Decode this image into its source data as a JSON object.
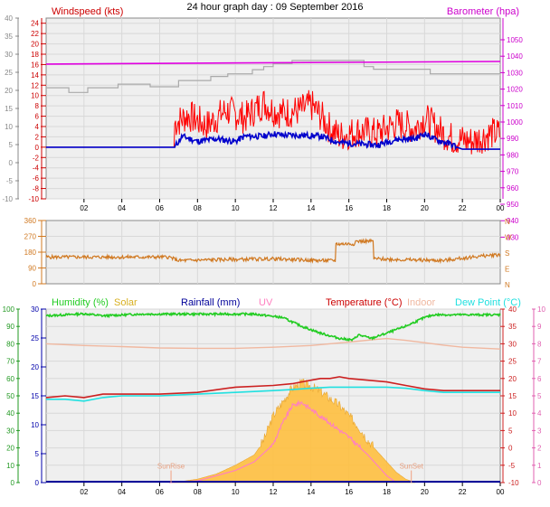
{
  "title": "24 hour graph day : 09 September 2016",
  "colors": {
    "wind": "#ff0000",
    "windAvg": "#0000cc",
    "baro": "#e000e0",
    "baroGrey": "#aaaaaa",
    "dir": "#d07820",
    "humidity": "#22cc22",
    "solar": "#ffc040",
    "rain": "#000099",
    "uv": "#ff80c0",
    "temp": "#cc2020",
    "indoor": "#f0b8a0",
    "dew": "#20e0e0",
    "grid": "#d8d8d8",
    "plotBg": "#efefef"
  },
  "chart_data": [
    {
      "type": "line",
      "legend": {
        "left": "Windspeed (kts)",
        "right": "Barometer (hpa)"
      },
      "outer_left_ticks": [
        "40",
        "35",
        "30",
        "25",
        "20",
        "15",
        "10",
        "5",
        "0",
        "-5",
        "-10"
      ],
      "left_ticks": [
        "24",
        "22",
        "20",
        "18",
        "16",
        "14",
        "12",
        "10",
        "8",
        "6",
        "4",
        "2",
        "0",
        "-2",
        "-4",
        "-6",
        "-8",
        "-10"
      ],
      "right_ticks": [
        "1050",
        "1040",
        "1030",
        "1020",
        "1010",
        "1000",
        "990",
        "980",
        "970",
        "960",
        "950",
        "940",
        "930"
      ],
      "x_ticks": [
        "02",
        "04",
        "06",
        "08",
        "10",
        "12",
        "14",
        "16",
        "18",
        "20",
        "22",
        "00"
      ],
      "ylim": [
        -10,
        25
      ],
      "series": [
        {
          "key": "barometer",
          "x": [
            0,
            24
          ],
          "y": [
            16.1,
            16.6
          ]
        },
        {
          "key": "baro_grey",
          "x": [
            0,
            1.2,
            1.2,
            2.2,
            2.2,
            3.8,
            3.8,
            5.5,
            5.5,
            7.0,
            7.0,
            8.7,
            8.7,
            9.6,
            9.6,
            10.9,
            10.9,
            11.5,
            11.5,
            12.0,
            12.0,
            13.0,
            13.0,
            16.8,
            16.8,
            17.3,
            17.3,
            20.3,
            20.3,
            24
          ],
          "y": [
            11.5,
            11.5,
            10.6,
            10.6,
            11.5,
            11.5,
            12.2,
            12.2,
            11.7,
            11.7,
            12.9,
            12.9,
            13.7,
            13.7,
            14.2,
            14.2,
            15,
            15,
            15.6,
            15.6,
            16.2,
            16.2,
            16.8,
            16.8,
            15.6,
            15.6,
            15.1,
            15.1,
            14.2,
            14.2
          ]
        },
        {
          "key": "gust",
          "x": [
            0,
            6.8,
            6.8,
            7.5,
            8.5,
            9.5,
            10.5,
            11.5,
            12.0,
            12.5,
            13.5,
            14.0,
            14.5,
            15.0,
            15.5,
            16.5,
            17.5,
            18.5,
            19.5,
            20.0,
            20.5,
            21.0,
            21.5,
            22.5,
            23.5,
            24
          ],
          "y": [
            0,
            0,
            4,
            5.5,
            3.5,
            6.5,
            5,
            8,
            6.5,
            6,
            6.5,
            7.5,
            5.5,
            3,
            1.5,
            2.5,
            2,
            4,
            3,
            5,
            3.5,
            2,
            1,
            0.5,
            2,
            2
          ]
        },
        {
          "key": "avg",
          "x": [
            0,
            6.8,
            7.2,
            8,
            9,
            10,
            10.5,
            11.5,
            12,
            12.5,
            13.5,
            14.5,
            15.5,
            16.5,
            17.5,
            18.5,
            19.5,
            20,
            20.5,
            21.5,
            22,
            24
          ],
          "y": [
            0,
            0,
            2,
            1,
            1.5,
            1,
            2,
            2,
            2.5,
            2.2,
            2.2,
            2,
            0.8,
            0.5,
            0.3,
            1.4,
            1.5,
            2.5,
            1.5,
            0.3,
            -0.4,
            -0.4
          ]
        }
      ]
    },
    {
      "type": "line",
      "right_labels": [
        "N",
        "W",
        "S",
        "E",
        "N"
      ],
      "left_ticks": [
        "360",
        "270",
        "180",
        "90",
        "0"
      ],
      "ylim": [
        0,
        360
      ],
      "series": [
        {
          "key": "direction",
          "x": [
            0,
            6.5,
            7,
            9,
            12,
            14.5,
            15.3,
            15.3,
            16.3,
            16.3,
            17.3,
            17.3,
            19,
            21,
            22.5,
            24
          ],
          "y": [
            150,
            150,
            130,
            135,
            140,
            130,
            130,
            225,
            225,
            240,
            240,
            140,
            135,
            130,
            150,
            165
          ]
        }
      ]
    },
    {
      "type": "line",
      "legend": [
        "Humidity (%)",
        "Solar",
        "Rainfall (mm)",
        "UV",
        "Temperature (°C)",
        "Indoor",
        "Dew Point (°C)"
      ],
      "events": [
        "SunRise",
        "SunSet"
      ],
      "humidity_ticks": [
        "100",
        "90",
        "80",
        "70",
        "60",
        "50",
        "40",
        "30",
        "20",
        "10",
        "0"
      ],
      "left_ticks": [
        "30",
        "25",
        "20",
        "15",
        "10",
        "5",
        "0"
      ],
      "right_ticks": [
        "40",
        "35",
        "30",
        "25",
        "20",
        "15",
        "10",
        "5",
        "0",
        "-5",
        "-10"
      ],
      "uv_ticks": [
        "10",
        "9",
        "8",
        "7",
        "6",
        "5",
        "4",
        "3",
        "2",
        "1",
        "0"
      ],
      "x_ticks": [
        "02",
        "04",
        "06",
        "08",
        "10",
        "12",
        "14",
        "16",
        "18",
        "20",
        "22",
        "00"
      ],
      "ylim": [
        -10,
        40
      ],
      "series": [
        {
          "key": "humidity",
          "x": [
            0,
            2,
            3,
            5,
            6,
            7,
            8,
            9,
            11,
            12.5,
            13.5,
            14.5,
            15.5,
            16.2,
            16.5,
            17.2,
            18,
            19,
            20,
            20.5,
            24
          ],
          "y": [
            38,
            38.6,
            38,
            38.5,
            38.5,
            38.5,
            38.5,
            38.5,
            38.5,
            37.5,
            35,
            33,
            31.5,
            31,
            32.5,
            31.5,
            33,
            35,
            37.5,
            38.3,
            38.3
          ]
        },
        {
          "key": "indoor",
          "x": [
            0,
            2,
            4,
            6,
            8,
            10,
            12,
            14,
            16,
            17.5,
            18,
            19,
            20,
            21,
            22,
            24
          ],
          "y": [
            30,
            29.5,
            29.2,
            28.8,
            28.7,
            28.7,
            29,
            29.5,
            30.5,
            31.3,
            31.5,
            31,
            30.3,
            29.6,
            29,
            28.5
          ]
        },
        {
          "key": "temperature",
          "x": [
            0,
            1,
            2,
            3,
            4,
            5,
            6,
            8,
            10,
            12,
            13,
            14,
            14.5,
            15,
            15.5,
            16,
            17,
            18,
            19,
            20,
            21,
            22,
            24
          ],
          "y": [
            14.5,
            15,
            14.5,
            15.5,
            15.5,
            15.5,
            15.5,
            16,
            17.5,
            18,
            18.5,
            19.5,
            20,
            20,
            20.5,
            20,
            19.5,
            19,
            18,
            17,
            16.5,
            16.5,
            16.5
          ]
        },
        {
          "key": "dewpoint",
          "x": [
            0,
            1,
            2,
            3,
            4,
            6,
            8,
            10,
            12,
            13,
            14,
            15,
            16,
            17,
            18,
            19,
            20,
            21,
            22,
            24
          ],
          "y": [
            14,
            14,
            13.5,
            14.5,
            15,
            15,
            15.5,
            16,
            16.5,
            16.8,
            17.2,
            17.5,
            17.5,
            17.5,
            17.5,
            17.2,
            16.5,
            16,
            16,
            16
          ]
        },
        {
          "key": "solar",
          "x": [
            6.5,
            7,
            8,
            9,
            10,
            11,
            11.5,
            12,
            12.5,
            13,
            13.5,
            14,
            14.5,
            15,
            15.5,
            16,
            16.5,
            17,
            17.5,
            18,
            18.5,
            19,
            19.5
          ],
          "y": [
            -10,
            -9.8,
            -9,
            -7.5,
            -5,
            -2,
            2,
            9,
            13,
            17,
            18.5,
            17.5,
            16,
            14,
            12,
            9,
            6,
            2,
            -1,
            -4,
            -7,
            -9,
            -10
          ]
        },
        {
          "key": "uv",
          "x": [
            6.5,
            8,
            10,
            11,
            12,
            12.5,
            13,
            13.5,
            14,
            14.5,
            15,
            16,
            17,
            17.5,
            18,
            18.5
          ],
          "y": [
            -10,
            -9.5,
            -6.5,
            -4,
            1,
            7,
            12,
            13,
            11,
            9,
            7,
            3,
            -2,
            -5,
            -8,
            -10
          ]
        }
      ]
    }
  ]
}
